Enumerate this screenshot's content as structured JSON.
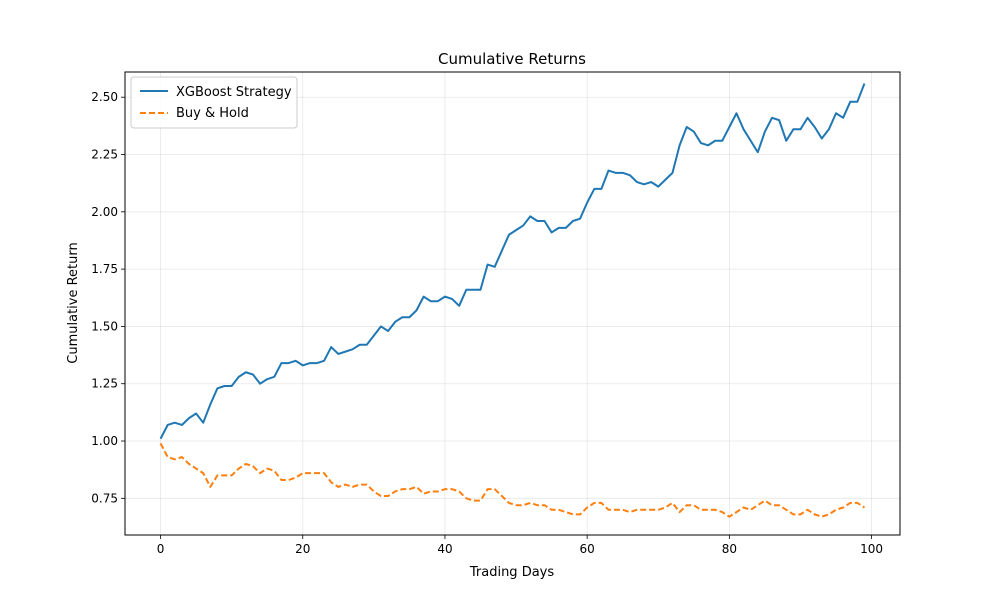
{
  "chart_data": {
    "type": "line",
    "title": "Cumulative Returns",
    "xlabel": "Trading Days",
    "ylabel": "Cumulative Return",
    "xlim": [
      -5,
      104
    ],
    "ylim": [
      0.59,
      2.61
    ],
    "xticks": [
      0,
      20,
      40,
      60,
      80,
      100
    ],
    "xtick_labels": [
      "0",
      "20",
      "40",
      "60",
      "80",
      "100"
    ],
    "yticks": [
      0.75,
      1.0,
      1.25,
      1.5,
      1.75,
      2.0,
      2.25,
      2.5
    ],
    "ytick_labels": [
      "0.75",
      "1.00",
      "1.25",
      "1.50",
      "1.75",
      "2.00",
      "2.25",
      "2.50"
    ],
    "grid": true,
    "legend": "upper-left",
    "series": [
      {
        "name": "XGBoost Strategy",
        "color": "#1f77b4",
        "style": "solid",
        "values": [
          1.01,
          1.07,
          1.08,
          1.07,
          1.1,
          1.12,
          1.08,
          1.16,
          1.23,
          1.24,
          1.24,
          1.28,
          1.3,
          1.29,
          1.25,
          1.27,
          1.28,
          1.34,
          1.34,
          1.35,
          1.33,
          1.34,
          1.34,
          1.35,
          1.41,
          1.38,
          1.39,
          1.4,
          1.42,
          1.42,
          1.46,
          1.5,
          1.48,
          1.52,
          1.54,
          1.54,
          1.57,
          1.63,
          1.61,
          1.61,
          1.63,
          1.62,
          1.59,
          1.66,
          1.66,
          1.66,
          1.77,
          1.76,
          1.83,
          1.9,
          1.92,
          1.94,
          1.98,
          1.96,
          1.96,
          1.91,
          1.93,
          1.93,
          1.96,
          1.97,
          2.04,
          2.1,
          2.1,
          2.18,
          2.17,
          2.17,
          2.16,
          2.13,
          2.12,
          2.13,
          2.11,
          2.14,
          2.17,
          2.29,
          2.37,
          2.35,
          2.3,
          2.29,
          2.31,
          2.31,
          2.37,
          2.43,
          2.36,
          2.31,
          2.26,
          2.35,
          2.41,
          2.4,
          2.31,
          2.36,
          2.36,
          2.41,
          2.37,
          2.32,
          2.36,
          2.43,
          2.41,
          2.48,
          2.48,
          2.56
        ]
      },
      {
        "name": "Buy & Hold",
        "color": "#ff7f0e",
        "style": "dashed",
        "values": [
          0.99,
          0.93,
          0.92,
          0.93,
          0.9,
          0.88,
          0.86,
          0.8,
          0.85,
          0.85,
          0.85,
          0.88,
          0.9,
          0.89,
          0.86,
          0.88,
          0.87,
          0.83,
          0.83,
          0.84,
          0.86,
          0.86,
          0.86,
          0.86,
          0.82,
          0.8,
          0.81,
          0.8,
          0.81,
          0.81,
          0.78,
          0.76,
          0.76,
          0.78,
          0.79,
          0.79,
          0.8,
          0.77,
          0.78,
          0.78,
          0.79,
          0.79,
          0.78,
          0.75,
          0.74,
          0.74,
          0.79,
          0.79,
          0.76,
          0.73,
          0.72,
          0.72,
          0.73,
          0.72,
          0.72,
          0.7,
          0.7,
          0.69,
          0.68,
          0.68,
          0.71,
          0.73,
          0.73,
          0.7,
          0.7,
          0.7,
          0.69,
          0.7,
          0.7,
          0.7,
          0.7,
          0.71,
          0.73,
          0.69,
          0.72,
          0.72,
          0.7,
          0.7,
          0.7,
          0.69,
          0.67,
          0.69,
          0.71,
          0.7,
          0.72,
          0.74,
          0.72,
          0.72,
          0.7,
          0.68,
          0.68,
          0.7,
          0.68,
          0.67,
          0.68,
          0.7,
          0.71,
          0.73,
          0.73,
          0.71
        ]
      }
    ]
  }
}
